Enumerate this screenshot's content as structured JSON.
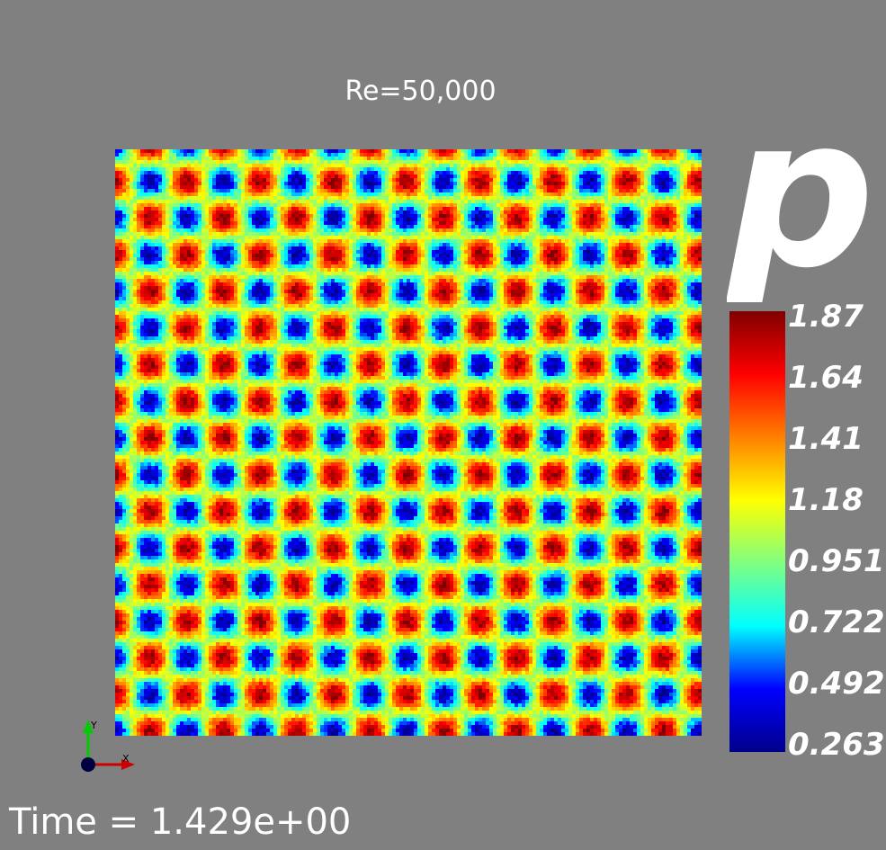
{
  "chart_data": {
    "type": "heatmap",
    "title": "Re=50,000",
    "field": {
      "name": "p",
      "pattern": "doubly periodic array of pressure highs and lows on a diagonal (checkerboard) lattice",
      "cells_x": 8,
      "cells_y": 8,
      "low_value": 0.263,
      "high_value": 1.87
    },
    "colorbar": {
      "title": "p",
      "min": 0.263,
      "max": 1.87,
      "ticks": [
        "1.87",
        "1.64",
        "1.41",
        "1.18",
        "0.951",
        "0.722",
        "0.492",
        "0.263"
      ],
      "colormap": "jet",
      "stops": [
        "#00008b",
        "#0000ff",
        "#00ffff",
        "#80ff80",
        "#ffff00",
        "#ff8000",
        "#ff0000",
        "#800000"
      ]
    },
    "annotation": {
      "time_text": "Time = 1.429e+00"
    },
    "axes_triad": {
      "x_label": "X",
      "y_label": "Y",
      "x_color": "#cc0000",
      "y_color": "#00cc00",
      "origin_color": "#000040"
    }
  }
}
